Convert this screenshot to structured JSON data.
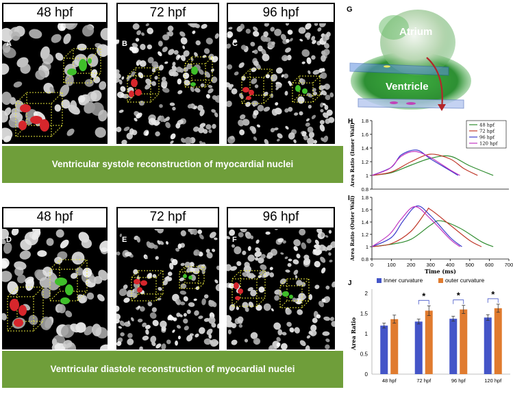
{
  "figure": {
    "row1": {
      "panels": [
        {
          "letter": "A",
          "stage": "48 hpf"
        },
        {
          "letter": "B",
          "stage": "72 hpf"
        },
        {
          "letter": "C",
          "stage": "96 hpf"
        }
      ],
      "banner": "Ventricular systole reconstruction of myocardial nuclei"
    },
    "row2": {
      "panels": [
        {
          "letter": "D",
          "stage": "48 hpf"
        },
        {
          "letter": "E",
          "stage": "72 hpf"
        },
        {
          "letter": "F",
          "stage": "96 hpf"
        }
      ],
      "banner": "Ventricular diastole reconstruction of myocardial nuclei"
    },
    "panel_g": {
      "letter": "G",
      "atrium": "Atrium",
      "ventricle": "Ventricle"
    },
    "colors": {
      "red_nuclei": "#d6262c",
      "green_nuclei": "#3fbf2a",
      "banner": "#6f9e3a"
    }
  },
  "chart_data": [
    {
      "panel": "H",
      "type": "line",
      "ylabel": "Area Ratio (Inner Wall)",
      "ylim": [
        0.8,
        1.8
      ],
      "yticks": [
        "0.8",
        "1",
        "1.2",
        "1.4",
        "1.6",
        "1.8"
      ],
      "xlim": [
        0,
        700
      ],
      "legend": "top-right",
      "series": [
        {
          "name": "48 hpf",
          "color": "#2e8b2e",
          "x": [
            0,
            100,
            200,
            300,
            400,
            500,
            620
          ],
          "y": [
            1.0,
            1.04,
            1.15,
            1.25,
            1.28,
            1.14,
            1.0
          ]
        },
        {
          "name": "72 hpf",
          "color": "#c0392b",
          "x": [
            0,
            100,
            200,
            300,
            400,
            470,
            540
          ],
          "y": [
            1.0,
            1.05,
            1.2,
            1.31,
            1.24,
            1.1,
            1.0
          ]
        },
        {
          "name": "96 hpf",
          "color": "#3a3acb",
          "x": [
            0,
            100,
            150,
            230,
            300,
            400,
            440
          ],
          "y": [
            1.0,
            1.12,
            1.3,
            1.37,
            1.24,
            1.07,
            1.0
          ]
        },
        {
          "name": "120 hpf",
          "color": "#c033c0",
          "x": [
            0,
            90,
            150,
            220,
            300,
            400,
            450
          ],
          "y": [
            1.0,
            1.1,
            1.28,
            1.35,
            1.26,
            1.08,
            1.0
          ]
        }
      ]
    },
    {
      "panel": "I",
      "type": "line",
      "ylabel": "Area Ratio (Outer Wall)",
      "xlabel": "Time (ms)",
      "ylim": [
        0.8,
        1.8
      ],
      "yticks": [
        "0.8",
        "1",
        "1.2",
        "1.4",
        "1.6",
        "1.8"
      ],
      "xlim": [
        0,
        700
      ],
      "xticks": [
        "0",
        "100",
        "200",
        "300",
        "400",
        "500",
        "600",
        "700"
      ],
      "series": [
        {
          "name": "48 hpf",
          "color": "#2e8b2e",
          "x": [
            0,
            100,
            200,
            300,
            350,
            450,
            560,
            620
          ],
          "y": [
            1.0,
            1.04,
            1.12,
            1.35,
            1.42,
            1.3,
            1.08,
            1.0
          ]
        },
        {
          "name": "72 hpf",
          "color": "#c0392b",
          "x": [
            0,
            100,
            200,
            280,
            300,
            400,
            500,
            560
          ],
          "y": [
            1.0,
            1.05,
            1.25,
            1.58,
            1.6,
            1.35,
            1.1,
            1.0
          ]
        },
        {
          "name": "96 hpf",
          "color": "#3a3acb",
          "x": [
            0,
            100,
            160,
            230,
            300,
            400,
            460
          ],
          "y": [
            1.0,
            1.15,
            1.42,
            1.66,
            1.5,
            1.15,
            1.0
          ]
        },
        {
          "name": "120 hpf",
          "color": "#c033c0",
          "x": [
            0,
            90,
            150,
            220,
            300,
            400,
            450
          ],
          "y": [
            1.0,
            1.2,
            1.45,
            1.65,
            1.45,
            1.12,
            1.0
          ]
        }
      ]
    },
    {
      "panel": "J",
      "type": "bar",
      "ylabel": "Area Ratio",
      "ylim": [
        0,
        2
      ],
      "yticks": [
        "0",
        "0.5",
        "1",
        "1.5",
        "2"
      ],
      "categories": [
        "48 hpf",
        "72 hpf",
        "96 hpf",
        "120 hpf"
      ],
      "legend": "top",
      "series": [
        {
          "name": "Inner curvature",
          "color": "#4455c8",
          "values": [
            1.2,
            1.3,
            1.37,
            1.4
          ],
          "errors": [
            0.06,
            0.06,
            0.06,
            0.07
          ]
        },
        {
          "name": "outer curvature",
          "color": "#e07b2f",
          "values": [
            1.36,
            1.57,
            1.6,
            1.63
          ],
          "errors": [
            0.1,
            0.12,
            0.1,
            0.1
          ]
        }
      ],
      "significance": [
        "",
        "*",
        "*",
        "*"
      ]
    }
  ]
}
